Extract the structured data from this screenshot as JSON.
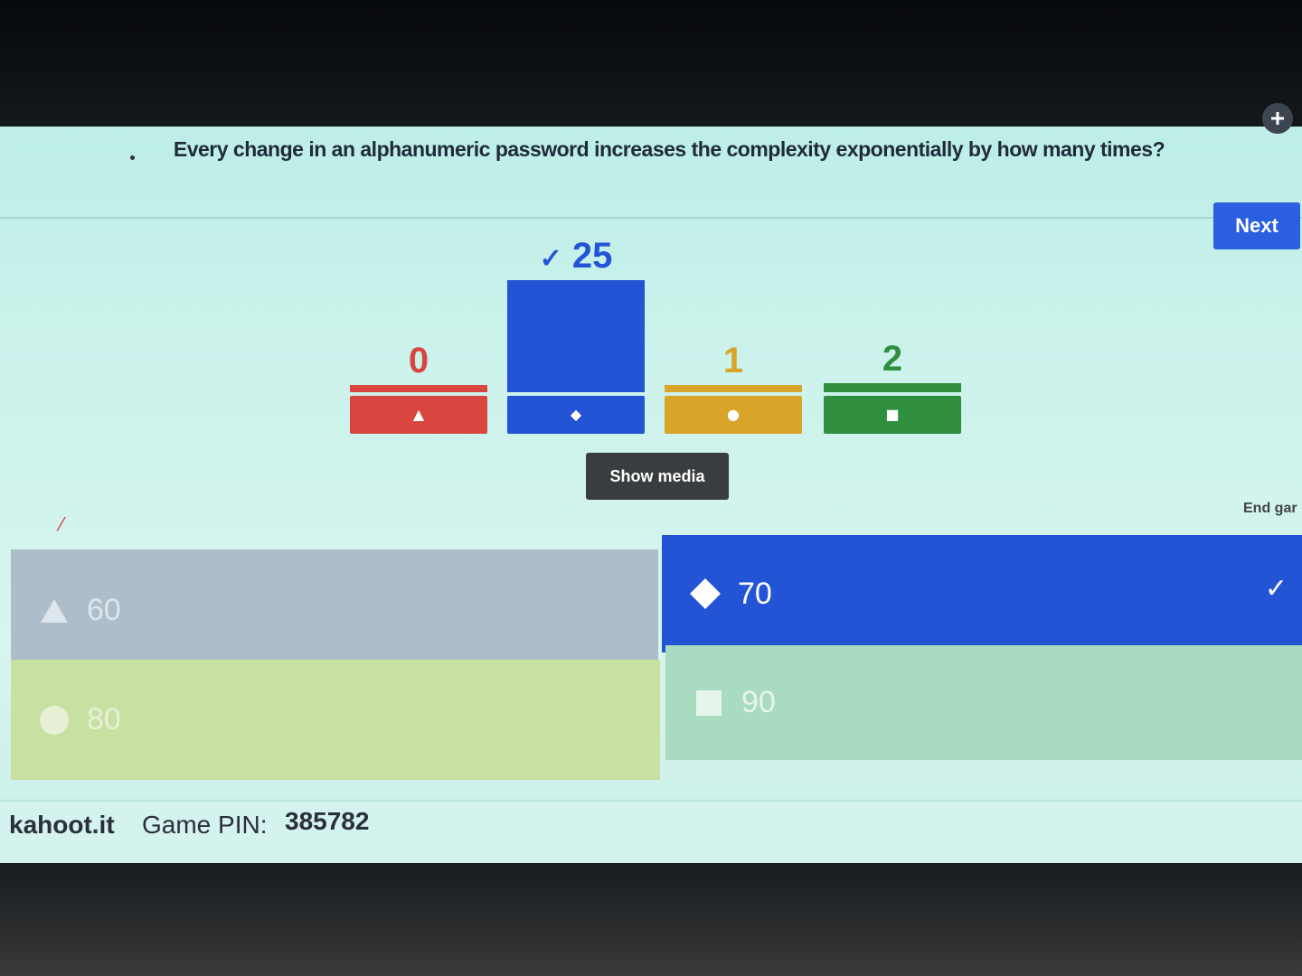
{
  "question": {
    "text": "Every change in an alphanumeric password increases the complexity exponentially by how many times?"
  },
  "controls": {
    "collapse_icon": "collapse-icon",
    "next_label": "Next",
    "show_media_label": "Show media",
    "end_game_label": "End gar"
  },
  "results": {
    "bars": [
      {
        "count": "0",
        "value": 0,
        "color": "#d9453f",
        "shape": "triangle",
        "correct": false
      },
      {
        "count": "25",
        "value": 25,
        "color": "#2454d6",
        "shape": "diamond",
        "correct": true
      },
      {
        "count": "1",
        "value": 1,
        "color": "#d9a42a",
        "shape": "circle",
        "correct": false
      },
      {
        "count": "2",
        "value": 2,
        "color": "#2f8f3f",
        "shape": "square",
        "correct": false
      }
    ],
    "correct_mark": "✓"
  },
  "answers": [
    {
      "label": "60",
      "shape": "triangle",
      "correct": false
    },
    {
      "label": "70",
      "shape": "diamond",
      "correct": true
    },
    {
      "label": "80",
      "shape": "circle",
      "correct": false
    },
    {
      "label": "90",
      "shape": "square",
      "correct": false
    }
  ],
  "footer": {
    "brand": "kahoot.it",
    "pin_label": "Game PIN:",
    "pin_value": "385782"
  }
}
